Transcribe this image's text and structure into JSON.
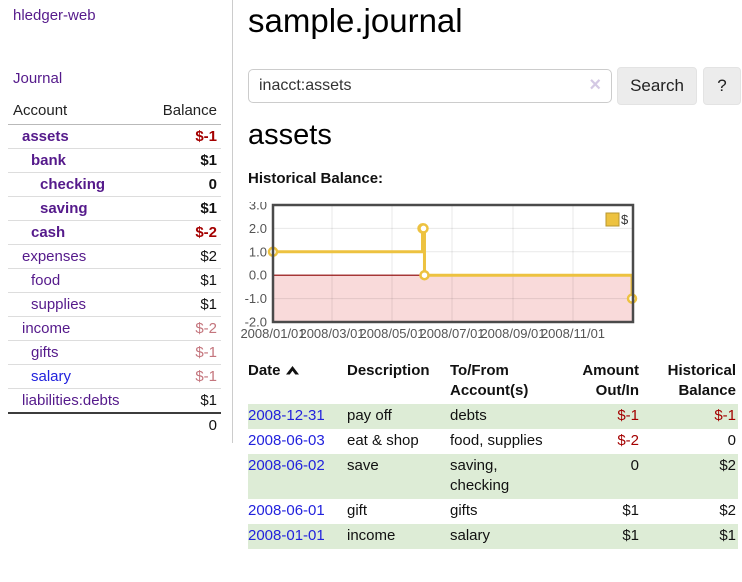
{
  "colors": {
    "link_purple": "#551a8b",
    "link_blue": "#2222dd",
    "negative_strong": "#a40000",
    "negative_soft": "#c4757d",
    "row_stripe_green": "#ddecd6",
    "series_gold": "#EDC240"
  },
  "sidebar": {
    "app_title": "hledger-web",
    "journal_label": "Journal",
    "accounts": {
      "header_account": "Account",
      "header_balance": "Balance",
      "rows": [
        {
          "name": "assets",
          "balance": "$-1"
        },
        {
          "name": "bank",
          "balance": "$1"
        },
        {
          "name": "checking",
          "balance": "0"
        },
        {
          "name": "saving",
          "balance": "$1"
        },
        {
          "name": "cash",
          "balance": "$-2"
        },
        {
          "name": "expenses",
          "balance": "$2"
        },
        {
          "name": "food",
          "balance": "$1"
        },
        {
          "name": "supplies",
          "balance": "$1"
        },
        {
          "name": "income",
          "balance": "$-2"
        },
        {
          "name": "gifts",
          "balance": "$-1"
        },
        {
          "name": "salary",
          "balance": "$-1"
        },
        {
          "name": "liabilities:debts",
          "balance": "$1"
        }
      ],
      "total": "0"
    }
  },
  "main": {
    "title": "sample.journal",
    "search": {
      "value": "inacct:assets",
      "clear_icon": "×",
      "button_label": "Search",
      "help_label": "?"
    },
    "account_heading": "assets",
    "chart_label": "Historical Balance:"
  },
  "chart_data": {
    "type": "line",
    "title": "Historical Balance",
    "legend_position": "top-right",
    "legend": [
      {
        "label": "$",
        "color": "#EDC240"
      }
    ],
    "x_min": "2008-01-01",
    "x_max": "2009-01-01",
    "ylim": [
      -2,
      3
    ],
    "yticks": [
      "3.0",
      "2.0",
      "1.0",
      "0.0",
      "-1.0",
      "-2.0"
    ],
    "xticks": [
      {
        "date": "2008-01-01",
        "label": "2008/01/01"
      },
      {
        "date": "2008-03-01",
        "label": "2008/03/01"
      },
      {
        "date": "2008-05-01",
        "label": "2008/05/01"
      },
      {
        "date": "2008-07-01",
        "label": "2008/07/01"
      },
      {
        "date": "2008-09-01",
        "label": "2008/09/01"
      },
      {
        "date": "2008-11-01",
        "label": "2008/11/01"
      }
    ],
    "series": [
      {
        "name": "$",
        "color": "#EDC240",
        "style": "step-after",
        "points": [
          [
            "2008-01-01",
            1
          ],
          [
            "2008-06-01",
            2
          ],
          [
            "2008-06-02",
            2
          ],
          [
            "2008-06-03",
            0
          ],
          [
            "2008-12-31",
            -1
          ]
        ]
      }
    ],
    "grid": true,
    "negative_region_color": "#f9dada",
    "zero_line_color": "#8b0000"
  },
  "register": {
    "headers": {
      "date": "Date",
      "description": "Description",
      "accounts": "To/From Account(s)",
      "amount": "Amount Out/In",
      "balance": "Historical Balance"
    },
    "rows": [
      {
        "date": "2008-12-31",
        "description": "pay off",
        "accounts": "debts",
        "amount": "$-1",
        "balance": "$-1"
      },
      {
        "date": "2008-06-03",
        "description": "eat & shop",
        "accounts": "food, supplies",
        "amount": "$-2",
        "balance": "0"
      },
      {
        "date": "2008-06-02",
        "description": "save",
        "accounts": "saving,\nchecking",
        "amount": "0",
        "balance": "$2"
      },
      {
        "date": "2008-06-01",
        "description": "gift",
        "accounts": "gifts",
        "amount": "$1",
        "balance": "$2"
      },
      {
        "date": "2008-01-01",
        "description": "income",
        "accounts": "salary",
        "amount": "$1",
        "balance": "$1"
      }
    ]
  }
}
